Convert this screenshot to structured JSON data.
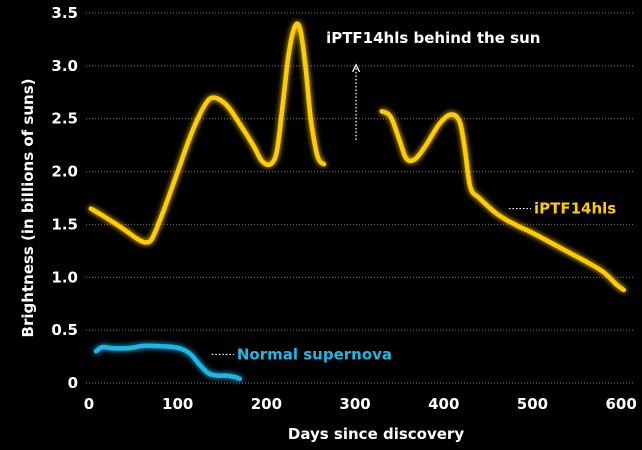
{
  "chart_data": {
    "type": "line",
    "title": "",
    "xlabel": "Days since discovery",
    "ylabel": "Brightness (in billions of suns)",
    "xlim": [
      0,
      610
    ],
    "ylim": [
      0,
      3.5
    ],
    "x_ticks": [
      0,
      100,
      200,
      300,
      400,
      500,
      600
    ],
    "y_ticks": [
      0,
      0.5,
      1.0,
      1.5,
      2.0,
      2.5,
      3.0,
      3.5
    ],
    "x_tick_labels": [
      "0",
      "100",
      "200",
      "300",
      "400",
      "500",
      "600"
    ],
    "y_tick_labels": [
      "0",
      "0.5",
      "1.0",
      "1.5",
      "2.0",
      "2.5",
      "3.0",
      "3.5"
    ],
    "grid": "horizontal dotted",
    "series": [
      {
        "name": "iPTF14hls",
        "color": "#FFCC00",
        "segments": [
          [
            [
              2,
              1.65
            ],
            [
              20,
              1.56
            ],
            [
              40,
              1.45
            ],
            [
              55,
              1.36
            ],
            [
              65,
              1.33
            ],
            [
              72,
              1.38
            ],
            [
              85,
              1.65
            ],
            [
              100,
              2.0
            ],
            [
              115,
              2.35
            ],
            [
              130,
              2.62
            ],
            [
              140,
              2.7
            ],
            [
              155,
              2.63
            ],
            [
              170,
              2.45
            ],
            [
              185,
              2.25
            ],
            [
              195,
              2.1
            ],
            [
              205,
              2.07
            ],
            [
              212,
              2.2
            ],
            [
              218,
              2.6
            ],
            [
              225,
              3.1
            ],
            [
              232,
              3.37
            ],
            [
              238,
              3.35
            ],
            [
              244,
              3.0
            ],
            [
              250,
              2.5
            ],
            [
              256,
              2.2
            ],
            [
              260,
              2.1
            ],
            [
              265,
              2.07
            ]
          ],
          [
            [
              330,
              2.57
            ],
            [
              340,
              2.52
            ],
            [
              350,
              2.3
            ],
            [
              358,
              2.12
            ],
            [
              368,
              2.12
            ],
            [
              380,
              2.25
            ],
            [
              395,
              2.45
            ],
            [
              408,
              2.54
            ],
            [
              418,
              2.47
            ],
            [
              424,
              2.2
            ],
            [
              430,
              1.85
            ],
            [
              440,
              1.75
            ],
            [
              460,
              1.6
            ],
            [
              480,
              1.5
            ],
            [
              500,
              1.42
            ],
            [
              520,
              1.33
            ],
            [
              540,
              1.24
            ],
            [
              560,
              1.15
            ],
            [
              580,
              1.05
            ],
            [
              595,
              0.93
            ],
            [
              603,
              0.88
            ]
          ]
        ]
      },
      {
        "name": "Normal supernova",
        "color": "#1FB7E6",
        "segments": [
          [
            [
              8,
              0.3
            ],
            [
              15,
              0.34
            ],
            [
              25,
              0.33
            ],
            [
              45,
              0.33
            ],
            [
              60,
              0.35
            ],
            [
              75,
              0.35
            ],
            [
              95,
              0.34
            ],
            [
              105,
              0.32
            ],
            [
              115,
              0.27
            ],
            [
              125,
              0.17
            ],
            [
              135,
              0.09
            ],
            [
              145,
              0.07
            ],
            [
              155,
              0.07
            ],
            [
              163,
              0.06
            ],
            [
              170,
              0.04
            ]
          ]
        ]
      }
    ],
    "annotations": [
      {
        "text": "iPTF14hls behind the sun",
        "at": [
          300,
          3.1
        ],
        "arrow": "up"
      },
      {
        "text": "iPTF14hls",
        "series": 0,
        "anchor": [
          460,
          1.65
        ]
      },
      {
        "text": "Normal supernova",
        "series": 1,
        "anchor": [
          125,
          0.27
        ]
      }
    ]
  }
}
